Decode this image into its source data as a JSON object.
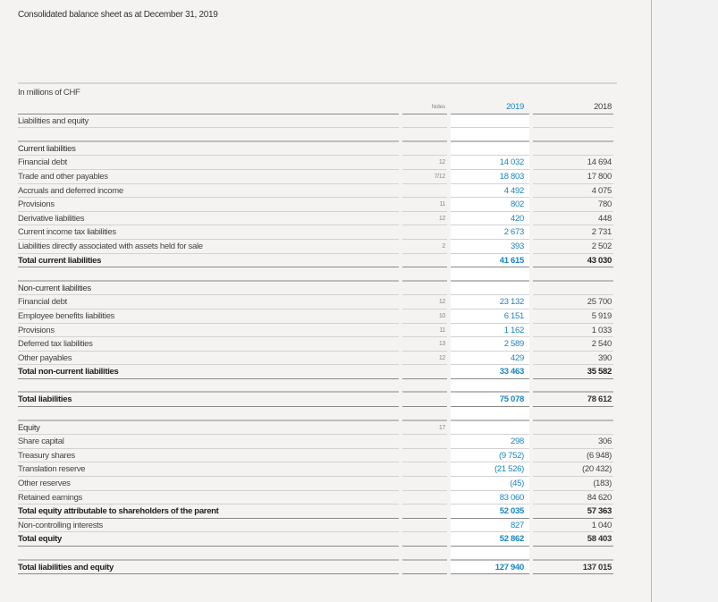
{
  "title": "Consolidated balance sheet as at December 31, 2019",
  "unit_label": "In millions of CHF",
  "columns": {
    "notes": "Notes",
    "y1": "2019",
    "y2": "2018"
  },
  "colors": {
    "current_year": "#1a84be",
    "text": "#333333",
    "background": "#f4f3f2"
  },
  "rows": [
    {
      "type": "item",
      "label": "Liabilities and equity",
      "notes": "",
      "y1": "",
      "y2": ""
    },
    {
      "type": "spacer"
    },
    {
      "type": "section",
      "label": "Current liabilities",
      "notes": "",
      "y1": "",
      "y2": ""
    },
    {
      "type": "item",
      "label": "Financial debt",
      "notes": "12",
      "y1": "14 032",
      "y2": "14 694"
    },
    {
      "type": "item",
      "label": "Trade and other payables",
      "notes": "7/12",
      "y1": "18 803",
      "y2": "17 800"
    },
    {
      "type": "item",
      "label": "Accruals and deferred income",
      "notes": "",
      "y1": "4 492",
      "y2": "4 075"
    },
    {
      "type": "item",
      "label": "Provisions",
      "notes": "11",
      "y1": "802",
      "y2": "780"
    },
    {
      "type": "item",
      "label": "Derivative liabilities",
      "notes": "12",
      "y1": "420",
      "y2": "448"
    },
    {
      "type": "item",
      "label": "Current income tax liabilities",
      "notes": "",
      "y1": "2 673",
      "y2": "2 731"
    },
    {
      "type": "item",
      "label": "Liabilities directly associated with assets held for sale",
      "notes": "2",
      "y1": "393",
      "y2": "2 502"
    },
    {
      "type": "total",
      "label": "Total current liabilities",
      "notes": "",
      "y1": "41 615",
      "y2": "43 030"
    },
    {
      "type": "spacer"
    },
    {
      "type": "section",
      "label": "Non-current liabilities",
      "notes": "",
      "y1": "",
      "y2": ""
    },
    {
      "type": "item",
      "label": "Financial debt",
      "notes": "12",
      "y1": "23 132",
      "y2": "25 700"
    },
    {
      "type": "item",
      "label": "Employee benefits liabilities",
      "notes": "10",
      "y1": "6 151",
      "y2": "5 919"
    },
    {
      "type": "item",
      "label": "Provisions",
      "notes": "11",
      "y1": "1 162",
      "y2": "1 033"
    },
    {
      "type": "item",
      "label": "Deferred tax liabilities",
      "notes": "13",
      "y1": "2 589",
      "y2": "2 540"
    },
    {
      "type": "item",
      "label": "Other payables",
      "notes": "12",
      "y1": "429",
      "y2": "390"
    },
    {
      "type": "total",
      "label": "Total non-current liabilities",
      "notes": "",
      "y1": "33 463",
      "y2": "35 582"
    },
    {
      "type": "spacer"
    },
    {
      "type": "total",
      "label": "Total liabilities",
      "notes": "",
      "y1": "75 078",
      "y2": "78 612"
    },
    {
      "type": "spacer"
    },
    {
      "type": "section",
      "label": "Equity",
      "notes": "17",
      "y1": "",
      "y2": ""
    },
    {
      "type": "item",
      "label": "Share capital",
      "notes": "",
      "y1": "298",
      "y2": "306"
    },
    {
      "type": "item",
      "label": "Treasury shares",
      "notes": "",
      "y1": "(9 752)",
      "y2": "(6 948)"
    },
    {
      "type": "item",
      "label": "Translation reserve",
      "notes": "",
      "y1": "(21 526)",
      "y2": "(20 432)"
    },
    {
      "type": "item",
      "label": "Other reserves",
      "notes": "",
      "y1": "(45)",
      "y2": "(183)"
    },
    {
      "type": "item",
      "label": "Retained earnings",
      "notes": "",
      "y1": "83 060",
      "y2": "84 620"
    },
    {
      "type": "total",
      "label": "Total equity attributable to shareholders of the parent",
      "notes": "",
      "y1": "52 035",
      "y2": "57 363"
    },
    {
      "type": "item",
      "label": "Non-controlling interests",
      "notes": "",
      "y1": "827",
      "y2": "1 040"
    },
    {
      "type": "total",
      "label": "Total equity",
      "notes": "",
      "y1": "52 862",
      "y2": "58 403"
    },
    {
      "type": "spacer"
    },
    {
      "type": "total",
      "label": "Total liabilities and equity",
      "notes": "",
      "y1": "127 940",
      "y2": "137 015"
    }
  ]
}
